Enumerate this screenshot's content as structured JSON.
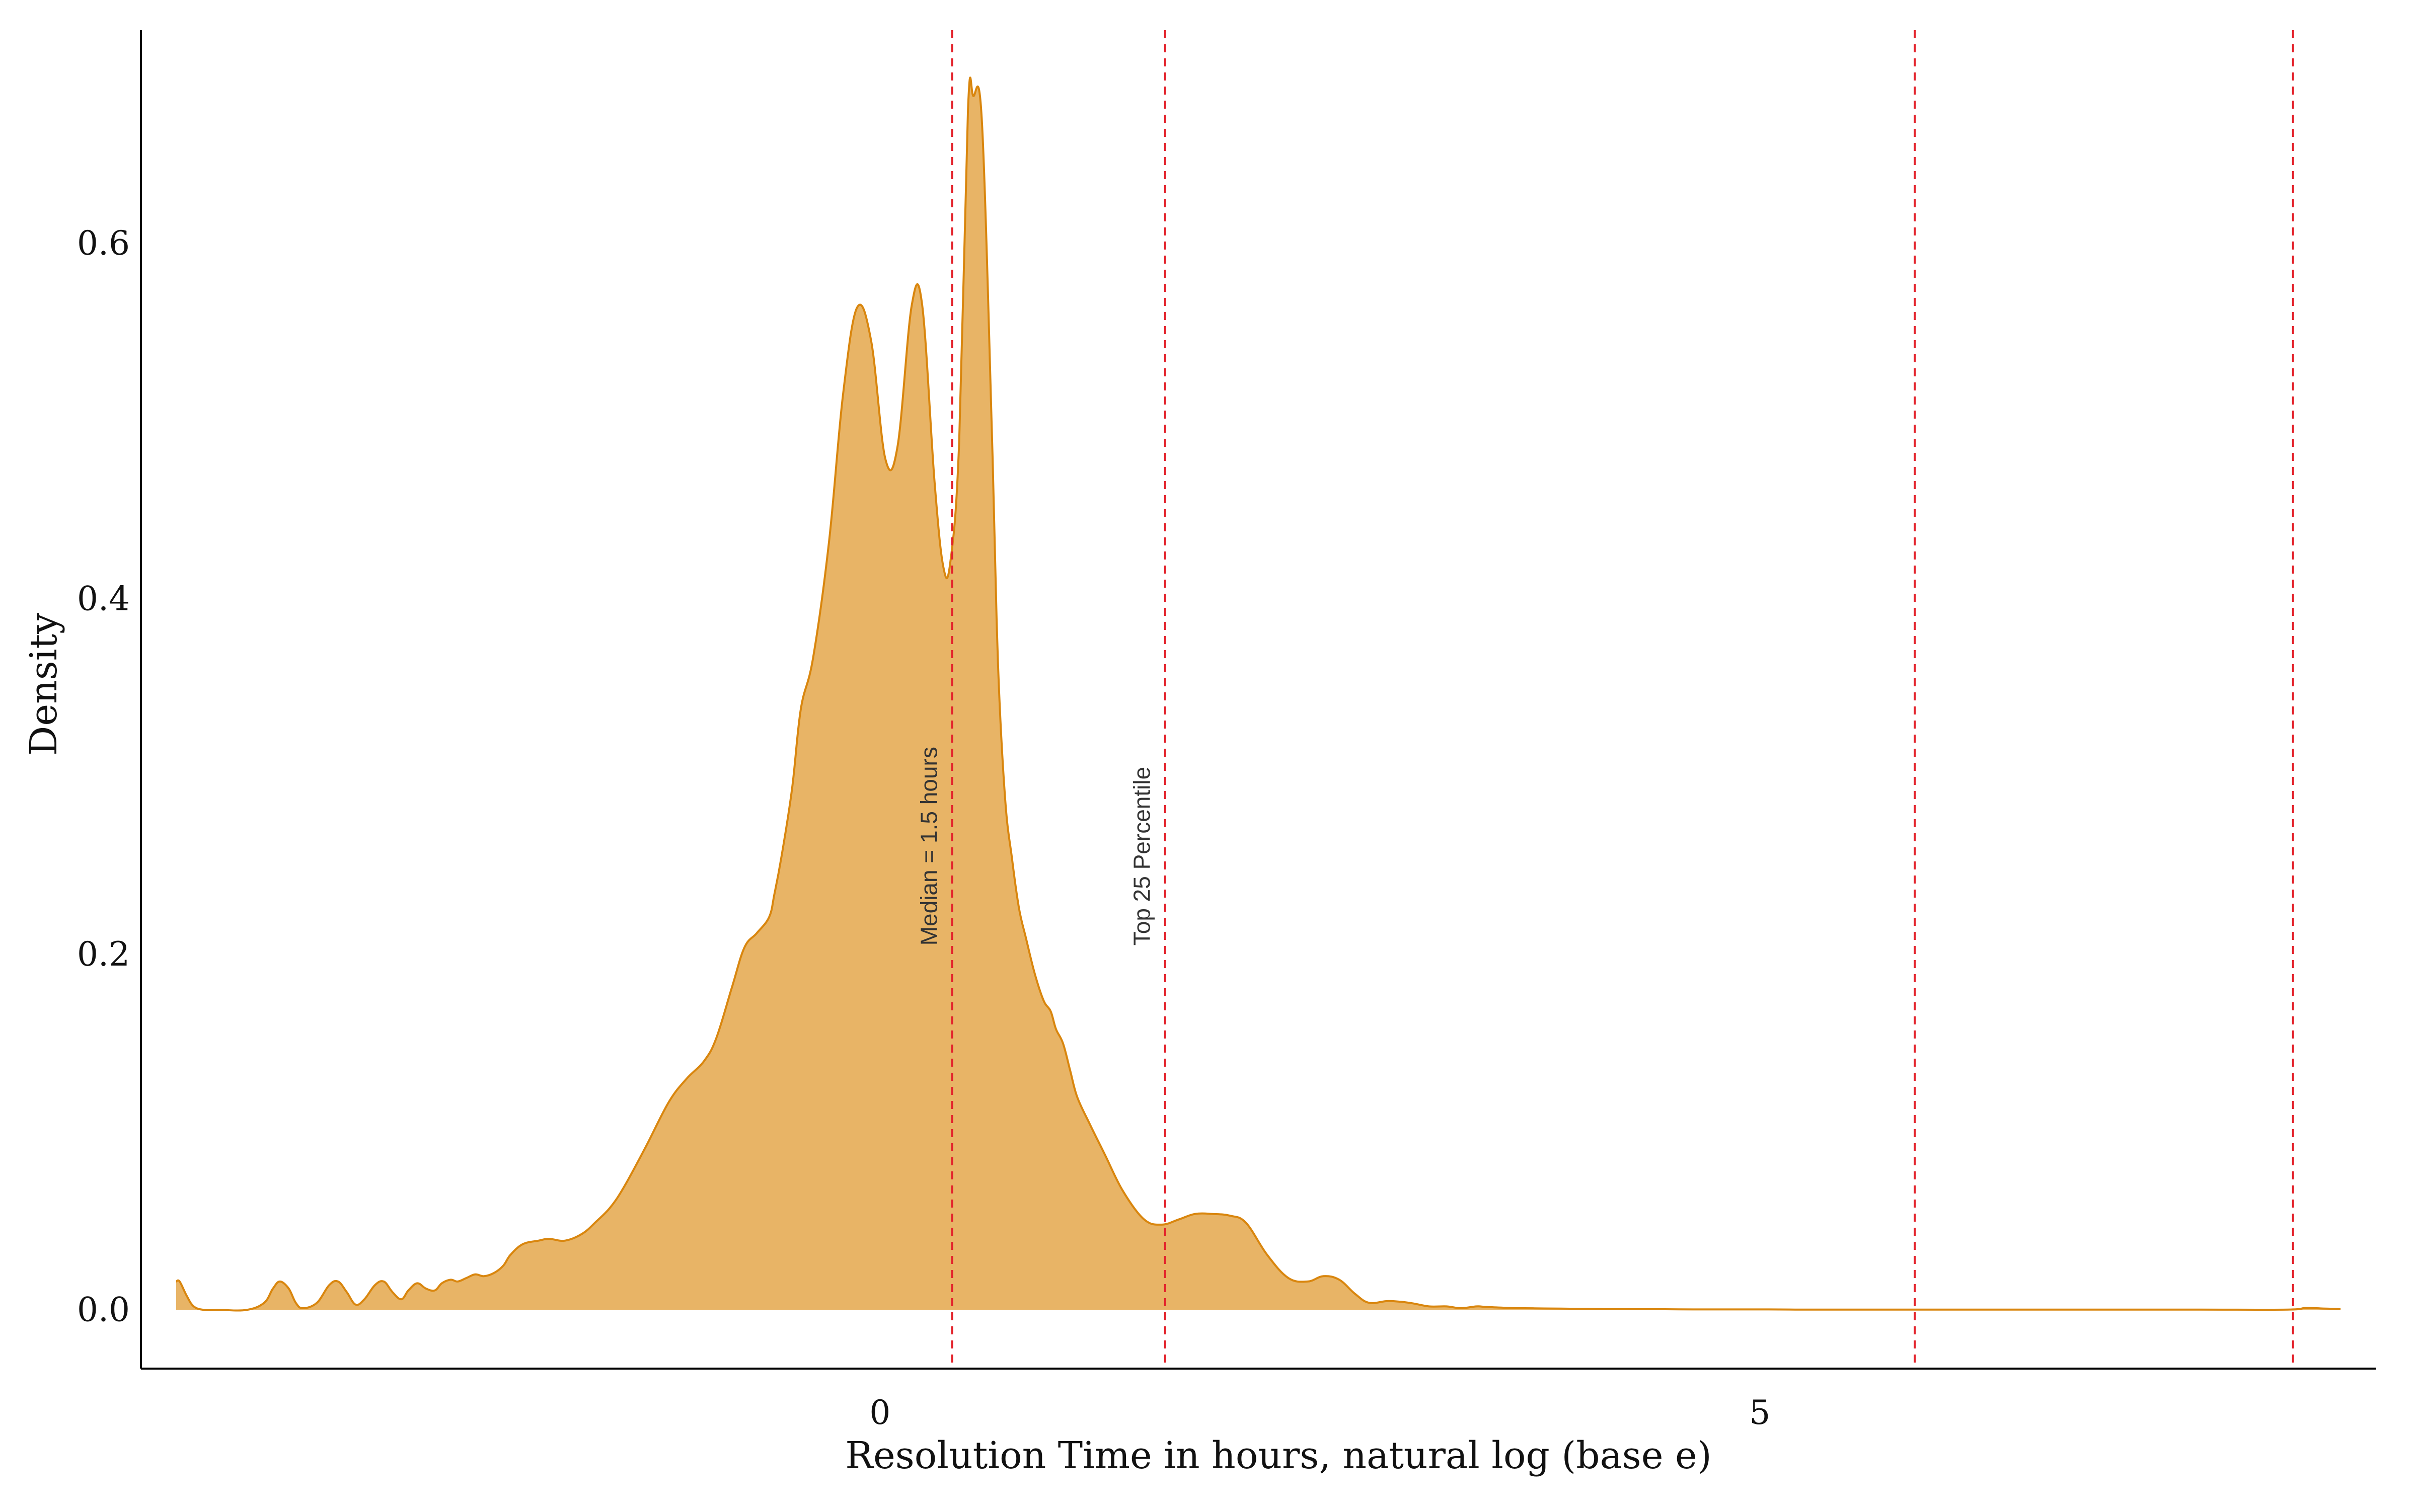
{
  "chart_data": {
    "type": "area",
    "title": "",
    "xlabel": "Resolution Time in hours, natural log (base e)",
    "ylabel": "Density",
    "xlim": [
      -4.2,
      8.5
    ],
    "ylim": [
      -0.033,
      0.72
    ],
    "grid": false,
    "legend": "none",
    "x_ticks": [
      {
        "value": 0,
        "label": "0"
      },
      {
        "value": 5,
        "label": "5"
      }
    ],
    "y_ticks": [
      {
        "value": 0.0,
        "label": "0.0"
      },
      {
        "value": 0.2,
        "label": "0.2"
      },
      {
        "value": 0.4,
        "label": "0.4"
      },
      {
        "value": 0.6,
        "label": "0.6"
      }
    ],
    "colors": {
      "fill": "#E8B466",
      "outline": "#D9860E",
      "reference_line": "#E3222B",
      "axis": "#000000"
    },
    "series": [
      {
        "x": [
          -4.0,
          -3.98,
          -3.94,
          -3.9,
          -3.84,
          -3.75,
          -3.6,
          -3.5,
          -3.45,
          -3.41,
          -3.36,
          -3.32,
          -3.28,
          -3.2,
          -3.13,
          -3.08,
          -3.03,
          -2.98,
          -2.93,
          -2.87,
          -2.82,
          -2.77,
          -2.72,
          -2.68,
          -2.63,
          -2.58,
          -2.53,
          -2.49,
          -2.44,
          -2.4,
          -2.35,
          -2.3,
          -2.25,
          -2.19,
          -2.14,
          -2.1,
          -2.03,
          -1.94,
          -1.88,
          -1.79,
          -1.69,
          -1.61,
          -1.53,
          -1.45,
          -1.33,
          -1.2,
          -1.1,
          -1.0,
          -0.93,
          -0.84,
          -0.77,
          -0.7,
          -0.63,
          -0.6,
          -0.56,
          -0.5,
          -0.45,
          -0.38,
          -0.29,
          -0.21,
          -0.13,
          -0.05,
          0.03,
          0.1,
          0.18,
          0.24,
          0.31,
          0.36,
          0.4,
          0.45,
          0.5,
          0.53,
          0.58,
          0.64,
          0.67,
          0.71,
          0.75,
          0.79,
          0.83,
          0.88,
          0.93,
          0.97,
          1.0,
          1.04,
          1.08,
          1.12,
          1.19,
          1.28,
          1.38,
          1.5,
          1.6,
          1.7,
          1.79,
          1.89,
          1.99,
          2.08,
          2.2,
          2.32,
          2.43,
          2.52,
          2.61,
          2.7,
          2.78,
          2.89,
          3.01,
          3.12,
          3.22,
          3.3,
          3.39,
          3.44,
          3.53,
          3.61,
          3.72,
          3.82,
          3.92,
          4.02,
          4.12,
          4.23,
          4.32,
          4.46,
          4.62,
          4.76,
          4.9,
          5.05,
          5.2,
          5.4,
          5.7,
          6.0,
          6.5,
          7.0,
          7.5,
          8.0,
          8.1,
          8.2,
          8.3
        ],
        "y": [
          0.016,
          0.016,
          0.008,
          0.002,
          0.0,
          0.0,
          0.0,
          0.004,
          0.012,
          0.016,
          0.012,
          0.004,
          0.001,
          0.004,
          0.014,
          0.016,
          0.01,
          0.003,
          0.006,
          0.014,
          0.016,
          0.01,
          0.006,
          0.011,
          0.015,
          0.012,
          0.011,
          0.015,
          0.017,
          0.016,
          0.018,
          0.02,
          0.019,
          0.021,
          0.025,
          0.031,
          0.037,
          0.039,
          0.04,
          0.039,
          0.043,
          0.05,
          0.058,
          0.07,
          0.092,
          0.117,
          0.13,
          0.14,
          0.153,
          0.182,
          0.204,
          0.212,
          0.221,
          0.234,
          0.255,
          0.293,
          0.338,
          0.367,
          0.432,
          0.515,
          0.564,
          0.545,
          0.479,
          0.486,
          0.565,
          0.565,
          0.466,
          0.418,
          0.421,
          0.489,
          0.675,
          0.683,
          0.667,
          0.479,
          0.365,
          0.289,
          0.254,
          0.226,
          0.209,
          0.189,
          0.174,
          0.168,
          0.158,
          0.15,
          0.135,
          0.12,
          0.105,
          0.087,
          0.067,
          0.051,
          0.048,
          0.051,
          0.054,
          0.054,
          0.053,
          0.049,
          0.031,
          0.018,
          0.016,
          0.019,
          0.017,
          0.009,
          0.004,
          0.005,
          0.004,
          0.002,
          0.002,
          0.001,
          0.002,
          0.0017,
          0.0013,
          0.001,
          0.0009,
          0.0008,
          0.0007,
          0.0006,
          0.0005,
          0.0005,
          0.0004,
          0.0004,
          0.0003,
          0.0003,
          0.0003,
          0.0003,
          0.0002,
          0.0002,
          0.0002,
          0.0002,
          0.0002,
          0.0002,
          0.0002,
          0.0002,
          0.0011,
          0.0008,
          0.0005
        ]
      }
    ],
    "reference_lines": [
      {
        "x": 0.41,
        "label": "Median = 1.5 hours"
      },
      {
        "x": 1.62,
        "label": "Top 25 Percentile"
      },
      {
        "x": 5.88,
        "label": ""
      },
      {
        "x": 8.03,
        "label": ""
      }
    ]
  }
}
